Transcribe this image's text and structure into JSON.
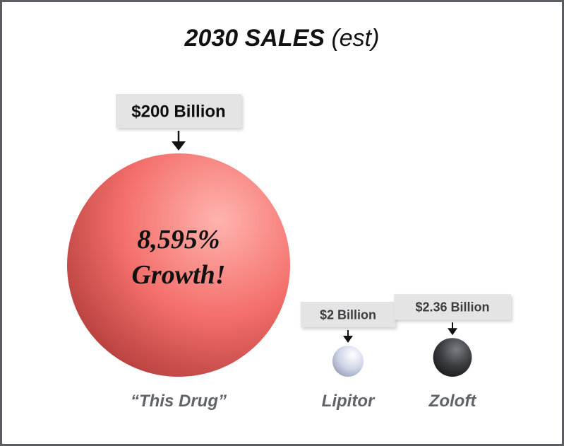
{
  "title": {
    "main": "2030 SALES",
    "sub": "(est)"
  },
  "colors": {
    "this_drug": "#f36e6a",
    "lipitor": "#cdd3e6",
    "zoloft": "#3a3c3f",
    "label_bg": "#e4e4e4",
    "frame": "#5a5d61"
  },
  "chart_data": {
    "type": "bubble",
    "title": "2030 SALES (est)",
    "series": [
      {
        "name": "“This Drug”",
        "value": 200,
        "unit": "Billion",
        "label": "$200 Billion",
        "color": "#f36e6a",
        "annotation": [
          "8,595%",
          "Growth!"
        ]
      },
      {
        "name": "Lipitor",
        "value": 2,
        "unit": "Billion",
        "label": "$2 Billion",
        "color": "#cdd3e6"
      },
      {
        "name": "Zoloft",
        "value": 2.36,
        "unit": "Billion",
        "label": "$2.36 Billion",
        "color": "#3a3c3f"
      }
    ]
  }
}
